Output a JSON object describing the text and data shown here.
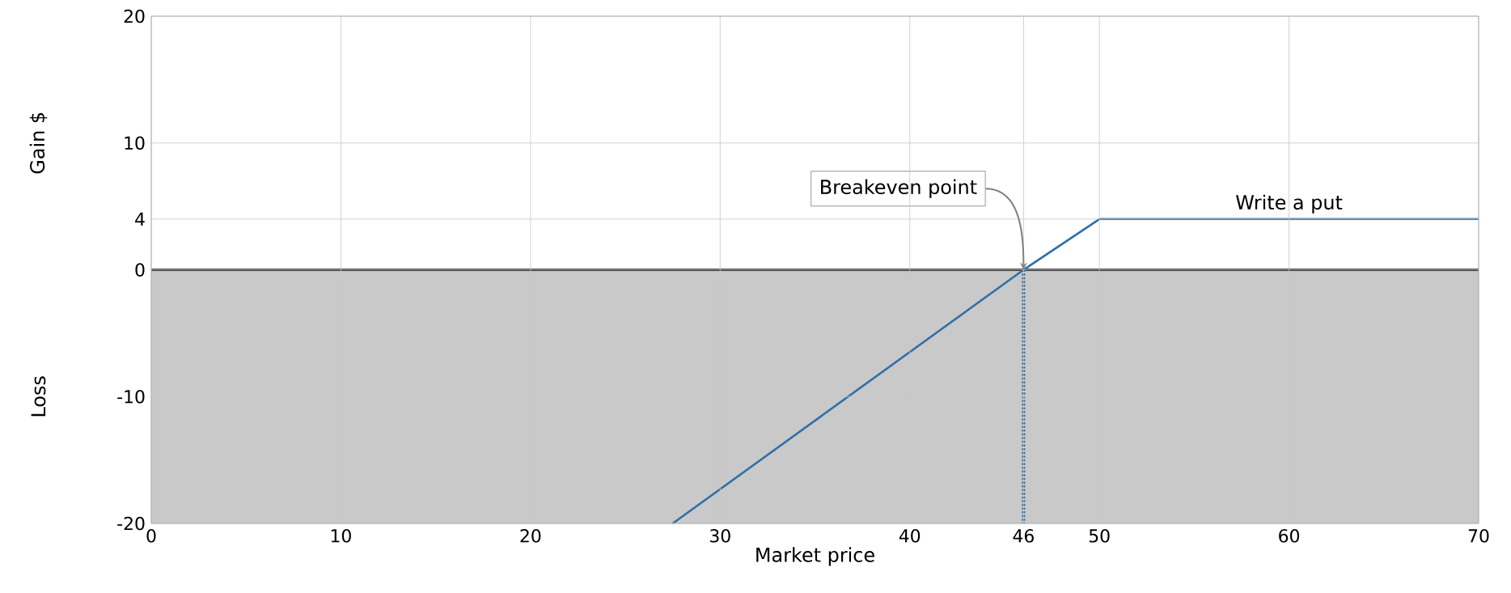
{
  "chart_data": {
    "type": "line",
    "xlabel": "Market price",
    "ylabel": "Gain $",
    "xlim": [
      0,
      70
    ],
    "ylim": [
      -20,
      20
    ],
    "xticks": [
      0,
      10,
      20,
      30,
      40,
      46,
      50,
      60,
      70
    ],
    "yticks": [
      -20,
      -10,
      0,
      4,
      10,
      20
    ],
    "grid": true,
    "series": [
      {
        "name": "Write a put",
        "color": "#2f6fa8",
        "x": [
          27.5,
          46,
          50,
          70
        ],
        "values": [
          -20,
          0,
          4,
          4
        ],
        "line_style": "solid"
      },
      {
        "color": "#2f6fa8",
        "x": [
          46,
          46
        ],
        "values": [
          0,
          -20
        ],
        "line_style": "dotted"
      }
    ],
    "ref_lines": [
      {
        "axis": "y",
        "value": 0,
        "color": "#000000"
      }
    ],
    "bands": [
      {
        "axis": "y",
        "from": -20,
        "to": 0,
        "color": "#c9c9c9"
      }
    ],
    "annotations": [
      {
        "text": "Breakeven point",
        "x": 46,
        "y": 0
      },
      "Loss"
    ]
  }
}
